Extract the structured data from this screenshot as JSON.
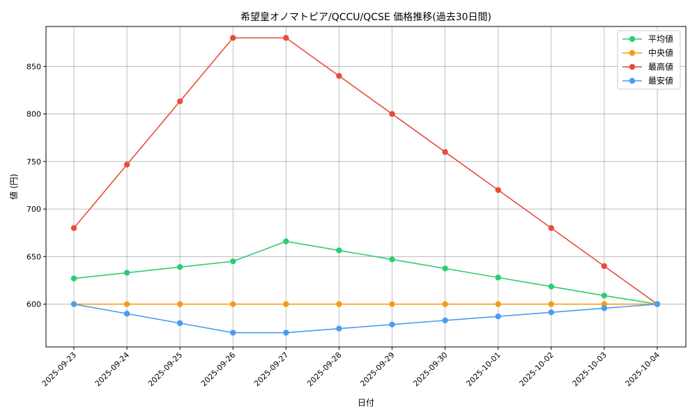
{
  "chart_data": {
    "type": "line",
    "title": "希望皇オノマトピア/QCCU/QCSE 価格推移(過去30日間)",
    "xlabel": "日付",
    "ylabel": "値 (円)",
    "categories": [
      "2025-09-23",
      "2025-09-24",
      "2025-09-25",
      "2025-09-26",
      "2025-09-27",
      "2025-09-28",
      "2025-09-29",
      "2025-09-30",
      "2025-10-01",
      "2025-10-02",
      "2025-10-03",
      "2025-10-04"
    ],
    "ylim": [
      555,
      892
    ],
    "yticks": [
      600,
      650,
      700,
      750,
      800,
      850
    ],
    "grid": true,
    "legend_position": "top-right",
    "series": [
      {
        "name": "平均値",
        "color": "#2ecc71",
        "values": [
          627,
          633,
          639,
          645,
          666,
          656.5,
          647,
          637.5,
          628,
          618.5,
          609,
          600
        ]
      },
      {
        "name": "中央値",
        "color": "#f39c12",
        "values": [
          600,
          600,
          600,
          600,
          600,
          600,
          600,
          600,
          600,
          600,
          600,
          600
        ]
      },
      {
        "name": "最高値",
        "color": "#e74c3c",
        "values": [
          680,
          746.7,
          813.3,
          880,
          880,
          840,
          800,
          760,
          720,
          680,
          640,
          600
        ]
      },
      {
        "name": "最安値",
        "color": "#4a9cf0",
        "values": [
          600,
          590,
          580,
          570,
          570,
          574.3,
          578.6,
          582.9,
          587.1,
          591.4,
          595.7,
          600
        ]
      }
    ]
  }
}
